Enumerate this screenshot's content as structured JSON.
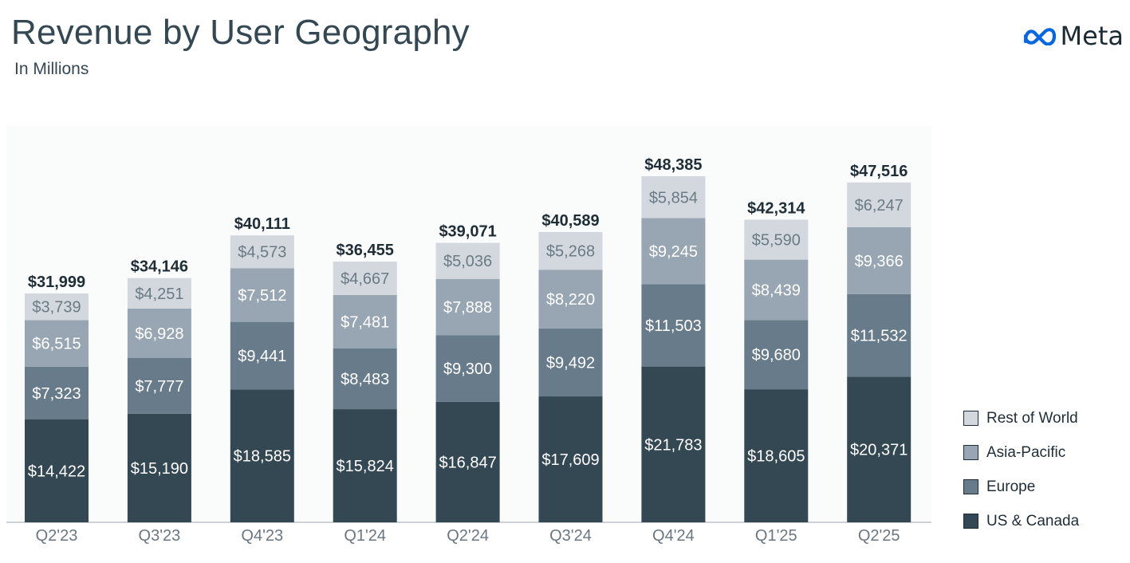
{
  "header": {
    "title": "Revenue by User Geography",
    "subtitle": "In Millions"
  },
  "logo": {
    "text": "Meta",
    "icon": "meta-infinity-icon",
    "color": "#0668E1"
  },
  "chart_data": {
    "type": "bar",
    "stacked": true,
    "title": "Revenue by User Geography",
    "subtitle": "In Millions",
    "categories": [
      "Q2'23",
      "Q3'23",
      "Q4'23",
      "Q1'24",
      "Q2'24",
      "Q3'24",
      "Q4'24",
      "Q1'25",
      "Q2'25"
    ],
    "series": [
      {
        "name": "US & Canada",
        "color": "#344854",
        "label_color": "#ffffff",
        "values": [
          14422,
          15190,
          18585,
          15824,
          16847,
          17609,
          21783,
          18605,
          20371
        ]
      },
      {
        "name": "Europe",
        "color": "#677b8a",
        "label_color": "#ffffff",
        "values": [
          7323,
          7777,
          9441,
          8483,
          9300,
          9492,
          11503,
          9680,
          11532
        ]
      },
      {
        "name": "Asia-Pacific",
        "color": "#97a6b2",
        "label_color": "#ffffff",
        "values": [
          6515,
          6928,
          7512,
          7481,
          7888,
          8220,
          9245,
          8439,
          9366
        ]
      },
      {
        "name": "Rest of World",
        "color": "#d2d8dd",
        "label_color": "#6b7a85",
        "values": [
          3739,
          4251,
          4573,
          4667,
          5036,
          5268,
          5854,
          5590,
          6247
        ]
      }
    ],
    "totals": [
      31999,
      34146,
      40111,
      36455,
      39071,
      40589,
      48385,
      42314,
      47516
    ],
    "segment_labels": [
      [
        "$14,422",
        "$15,190",
        "$18,585",
        "$15,824",
        "$16,847",
        "$17,609",
        "$21,783",
        "$18,605",
        "$20,371"
      ],
      [
        "$7,323",
        "$7,777",
        "$9,441",
        "$8,483",
        "$9,300",
        "$9,492",
        "$11,503",
        "$9,680",
        "$11,532"
      ],
      [
        "$6,515",
        "$6,928",
        "$7,512",
        "$7,481",
        "$7,888",
        "$8,220",
        "$9,245",
        "$8,439",
        "$9,366"
      ],
      [
        "$3,739",
        "$4,251",
        "$4,573",
        "$4,667",
        "$5,036",
        "$5,268",
        "$5,854",
        "$5,590",
        "$6,247"
      ]
    ],
    "total_labels": [
      "$31,999",
      "$34,146",
      "$40,111",
      "$36,455",
      "$39,071",
      "$40,589",
      "$48,385",
      "$42,314",
      "$47,516"
    ],
    "ylim": [
      0,
      48385
    ],
    "grid": false,
    "legend_position": "bottom-right",
    "legend": [
      "Rest of World",
      "Asia-Pacific",
      "Europe",
      "US & Canada"
    ]
  }
}
